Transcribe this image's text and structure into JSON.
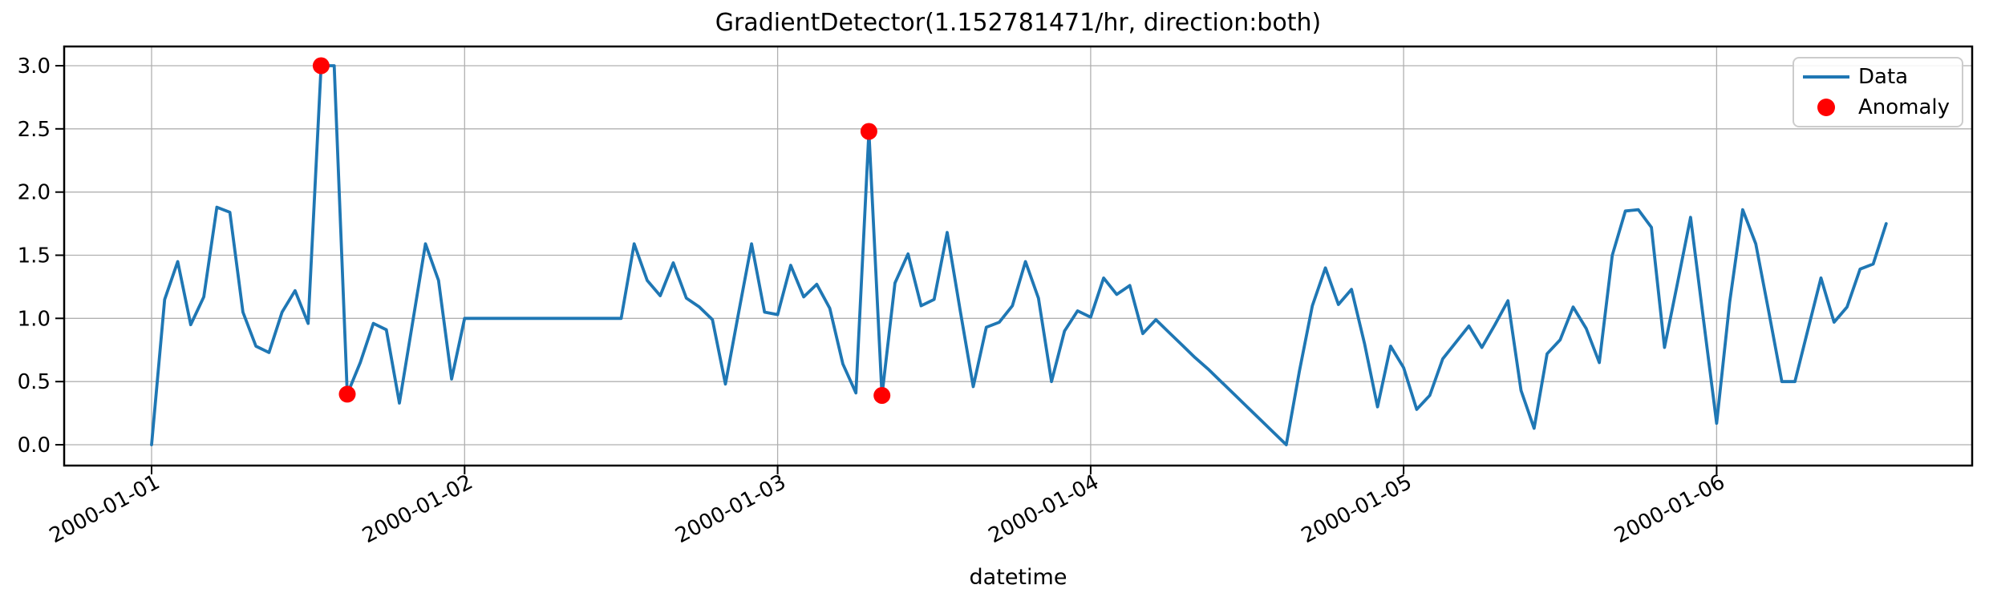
{
  "figure": {
    "title": "GradientDetector(1.152781471/hr, direction:both)",
    "xlabel": "datetime"
  },
  "legend": {
    "items": [
      {
        "label": "Data",
        "marker": "line",
        "color": "#1f77b4"
      },
      {
        "label": "Anomaly",
        "marker": "dot",
        "color": "#ff0000"
      }
    ]
  },
  "chart_data": {
    "type": "line",
    "title": "GradientDetector(1.152781471/hr, direction:both)",
    "xlabel": "datetime",
    "ylabel": "",
    "x_start": "2000-01-01 00:00",
    "x_step_hours": 1,
    "x_tick_labels": [
      "2000-01-01",
      "2000-01-02",
      "2000-01-03",
      "2000-01-04",
      "2000-01-05",
      "2000-01-06"
    ],
    "x_tick_days": [
      0,
      1,
      2,
      3,
      4,
      5
    ],
    "y_tick_labels": [
      "0.0",
      "0.5",
      "1.0",
      "1.5",
      "2.0",
      "2.5",
      "3.0"
    ],
    "y_ticks": [
      0,
      0.5,
      1,
      1.5,
      2,
      2.5,
      3
    ],
    "xlim_days": [
      -0.2794,
      5.8163
    ],
    "ylim": [
      -0.1649,
      3.1523
    ],
    "grid": true,
    "grid_color": "#b0b0b0",
    "legend_position": "upper right",
    "series": [
      {
        "name": "Data",
        "color": "#1f77b4",
        "line_width": 3.8,
        "values": [
          0.0,
          1.15,
          1.45,
          0.95,
          1.17,
          1.88,
          1.84,
          1.05,
          0.78,
          0.73,
          1.05,
          1.22,
          0.96,
          3.0,
          3.0,
          0.4,
          0.65,
          0.96,
          0.91,
          0.33,
          0.96,
          1.59,
          1.3,
          0.52,
          1.0,
          1.0,
          1.0,
          1.0,
          1.0,
          1.0,
          1.0,
          1.0,
          1.0,
          1.0,
          1.0,
          1.0,
          1.0,
          1.59,
          1.3,
          1.18,
          1.44,
          1.16,
          1.09,
          0.99,
          0.48,
          1.04,
          1.59,
          1.05,
          1.03,
          1.42,
          1.17,
          1.27,
          1.08,
          0.64,
          0.41,
          2.48,
          0.39,
          1.28,
          1.51,
          1.1,
          1.15,
          1.68,
          1.06,
          0.46,
          0.93,
          0.97,
          1.1,
          1.45,
          1.16,
          0.5,
          0.9,
          1.06,
          1.01,
          1.32,
          1.19,
          1.26,
          0.88,
          0.99,
          0.89,
          0.79,
          0.69,
          0.6,
          0.5,
          0.4,
          0.3,
          0.2,
          0.1,
          0.0,
          0.58,
          1.1,
          1.4,
          1.11,
          1.23,
          0.8,
          0.3,
          0.78,
          0.61,
          0.28,
          0.39,
          0.68,
          0.81,
          0.94,
          0.77,
          0.95,
          1.14,
          0.43,
          0.13,
          0.72,
          0.83,
          1.09,
          0.92,
          0.65,
          1.5,
          1.85,
          1.86,
          1.72,
          0.77,
          1.28,
          1.8,
          0.98,
          0.17,
          1.13,
          1.86,
          1.59,
          1.05,
          0.5,
          0.5,
          0.91,
          1.32,
          0.97,
          1.09,
          1.39,
          1.43,
          1.75
        ]
      }
    ],
    "anomalies": {
      "name": "Anomaly",
      "color": "#ff0000",
      "marker_radius": 10.5,
      "points": [
        {
          "hour": 13,
          "value": 3.0
        },
        {
          "hour": 15,
          "value": 0.4
        },
        {
          "hour": 55,
          "value": 2.48
        },
        {
          "hour": 56,
          "value": 0.39
        }
      ]
    }
  }
}
